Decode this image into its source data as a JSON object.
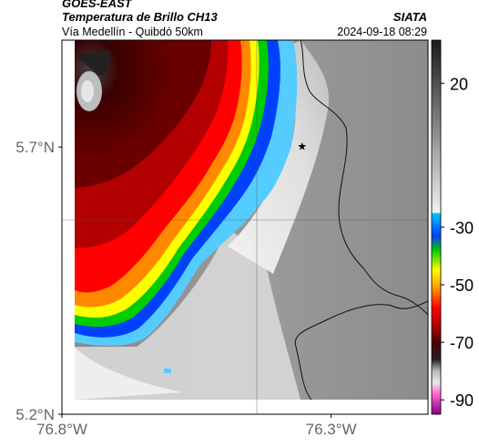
{
  "header": {
    "satellite": "GOES-EAST",
    "title": "Temperatura de Brillo CH13",
    "org": "SIATA",
    "subtitle": "Vía Medellín - Quibdó 50km",
    "timestamp": "2024-09-18 08:29"
  },
  "chart_data": {
    "type": "heatmap",
    "title": "Temperatura de Brillo CH13",
    "subtitle": "Vía Medellín - Quibdó 50km",
    "xlim": [
      -76.8,
      -76.12
    ],
    "ylim": [
      5.2,
      5.9
    ],
    "x_ticks": [
      {
        "value": -76.8,
        "label": "76.8°W"
      },
      {
        "value": -76.3,
        "label": "76.3°W"
      }
    ],
    "y_ticks": [
      {
        "value": 5.7,
        "label": "5.7°N"
      },
      {
        "value": 5.2,
        "label": "5.2°N"
      }
    ],
    "grid": true,
    "colorbar": {
      "range": [
        -95,
        35
      ],
      "ticks": [
        {
          "value": 20,
          "label": "20"
        },
        {
          "value": -30,
          "label": "-30"
        },
        {
          "value": -50,
          "label": "-50"
        },
        {
          "value": -70,
          "label": "-70"
        },
        {
          "value": -90,
          "label": "-90"
        }
      ],
      "stops": [
        {
          "value": 35,
          "color": "#1a1a1a"
        },
        {
          "value": -25,
          "color": "#f2f2f2"
        },
        {
          "value": -25.1,
          "color": "#00c8ff"
        },
        {
          "value": -33,
          "color": "#0040ff"
        },
        {
          "value": -38,
          "color": "#00cc00"
        },
        {
          "value": -45,
          "color": "#ffff00"
        },
        {
          "value": -52,
          "color": "#ff8800"
        },
        {
          "value": -58,
          "color": "#ff0000"
        },
        {
          "value": -64,
          "color": "#b30000"
        },
        {
          "value": -70,
          "color": "#4d0000"
        },
        {
          "value": -76,
          "color": "#222222"
        },
        {
          "value": -80,
          "color": "#bbbbbb"
        },
        {
          "value": -84,
          "color": "#e8e8e8"
        },
        {
          "value": -88,
          "color": "#ff66cc"
        },
        {
          "value": -95,
          "color": "#800080"
        }
      ]
    },
    "storm_front": [
      {
        "lat": 5.87,
        "lon": -76.57
      },
      {
        "lat": 5.81,
        "lon": -76.55
      },
      {
        "lat": 5.74,
        "lon": -76.53
      },
      {
        "lat": 5.7,
        "lon": -76.56
      },
      {
        "lat": 5.64,
        "lon": -76.63
      },
      {
        "lat": 5.58,
        "lon": -76.69
      },
      {
        "lat": 5.53,
        "lon": -76.73
      },
      {
        "lat": 5.48,
        "lon": -76.76
      }
    ],
    "marker": {
      "lat": 5.7,
      "lon": -76.32,
      "symbol": "star"
    }
  }
}
